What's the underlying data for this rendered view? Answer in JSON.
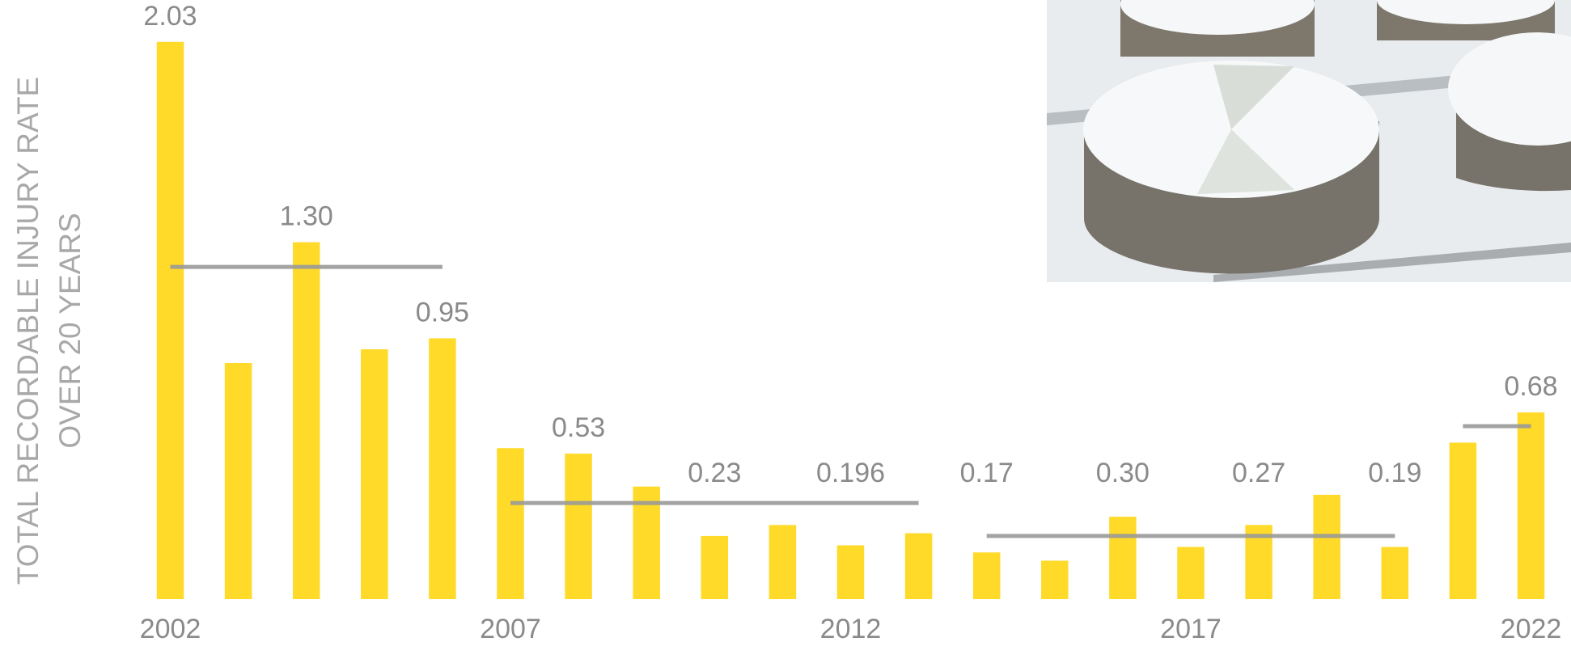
{
  "chart_data": {
    "type": "bar",
    "ylabel": [
      "TOTAL RECORDABLE INJURY RATE",
      "OVER 20 YEARS"
    ],
    "categories": [
      "2002",
      null,
      null,
      null,
      null,
      "2007",
      null,
      null,
      null,
      null,
      "2012",
      null,
      null,
      null,
      null,
      "2017",
      null,
      null,
      null,
      null,
      "2022"
    ],
    "values": [
      2.03,
      0.86,
      1.3,
      0.91,
      0.95,
      0.55,
      0.53,
      0.41,
      0.23,
      0.27,
      0.196,
      0.24,
      0.17,
      0.14,
      0.3,
      0.19,
      0.27,
      0.38,
      0.19,
      0.57,
      0.68
    ],
    "value_labels": [
      "2.03",
      null,
      "1.30",
      null,
      "0.95",
      null,
      "0.53",
      null,
      "0.23",
      null,
      "0.196",
      null,
      "0.17",
      null,
      "0.30",
      null,
      "0.27",
      null,
      "0.19",
      null,
      "0.68"
    ],
    "color": "#ffda29",
    "ylim": [
      0,
      2.1
    ],
    "reference_lines": [
      {
        "start": 0,
        "end": 4,
        "value": 1.21
      },
      {
        "start": 5,
        "end": 11,
        "value": 0.35
      },
      {
        "start": 12,
        "end": 18,
        "value": 0.23
      },
      {
        "start": 19,
        "end": 20,
        "value": 0.63
      }
    ],
    "reference_color": "#9a9a9a"
  }
}
